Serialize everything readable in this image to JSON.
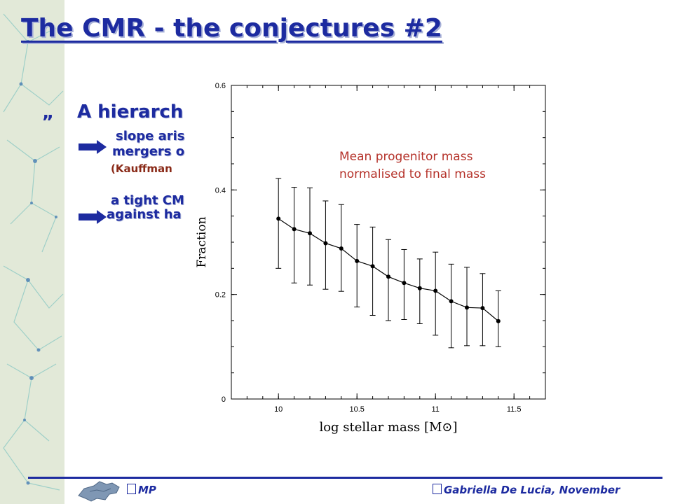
{
  "slide": {
    "title": "The CMR - the conjectures #2",
    "bullet_glyph": "„",
    "bullet_text": "A hierarch",
    "sub1_line1": "slope aris",
    "sub1_line2": "mergers o",
    "sub1_ref": "(Kauffman",
    "sub2_line1": "a tight CM",
    "sub2_line2": "against ha"
  },
  "annotation": {
    "line1": "Mean progenitor mass",
    "line2": "normalised to final mass"
  },
  "footer": {
    "left": "MP",
    "right": "Gabriella De Lucia, November"
  },
  "colors": {
    "title": "#1d2ba0",
    "annotation": "#b5322a",
    "reference": "#8a2a18"
  },
  "icons": [
    "bullet-icon",
    "arrow-icon",
    "footer-logo-icon"
  ],
  "chart_data": {
    "type": "line",
    "title": "",
    "xlabel": "log stellar mass [M⊙]",
    "ylabel": "Fraction",
    "xlim": [
      9.7,
      11.7
    ],
    "ylim": [
      0,
      0.6
    ],
    "x_ticks": [
      10,
      10.5,
      11,
      11.5
    ],
    "x_tick_labels": [
      "10",
      "10.5",
      "11",
      "11.5"
    ],
    "y_ticks": [
      0,
      0.2,
      0.4,
      0.6
    ],
    "y_tick_labels": [
      "0",
      "0.2",
      "0.4",
      "0.6"
    ],
    "grid": false,
    "series": [
      {
        "x": [
          10.0,
          10.1,
          10.2,
          10.3,
          10.4,
          10.5,
          10.6,
          10.7,
          10.8,
          10.9,
          11.0,
          11.1,
          11.2,
          11.3,
          11.4
        ],
        "y": [
          0.345,
          0.325,
          0.317,
          0.298,
          0.288,
          0.264,
          0.254,
          0.234,
          0.222,
          0.212,
          0.207,
          0.187,
          0.175,
          0.174,
          0.149
        ],
        "err_low": [
          0.25,
          0.222,
          0.218,
          0.21,
          0.206,
          0.176,
          0.16,
          0.15,
          0.152,
          0.144,
          0.122,
          0.098,
          0.102,
          0.102,
          0.1
        ],
        "err_high": [
          0.422,
          0.405,
          0.404,
          0.379,
          0.372,
          0.334,
          0.329,
          0.305,
          0.286,
          0.268,
          0.281,
          0.258,
          0.252,
          0.24,
          0.207
        ]
      }
    ]
  }
}
